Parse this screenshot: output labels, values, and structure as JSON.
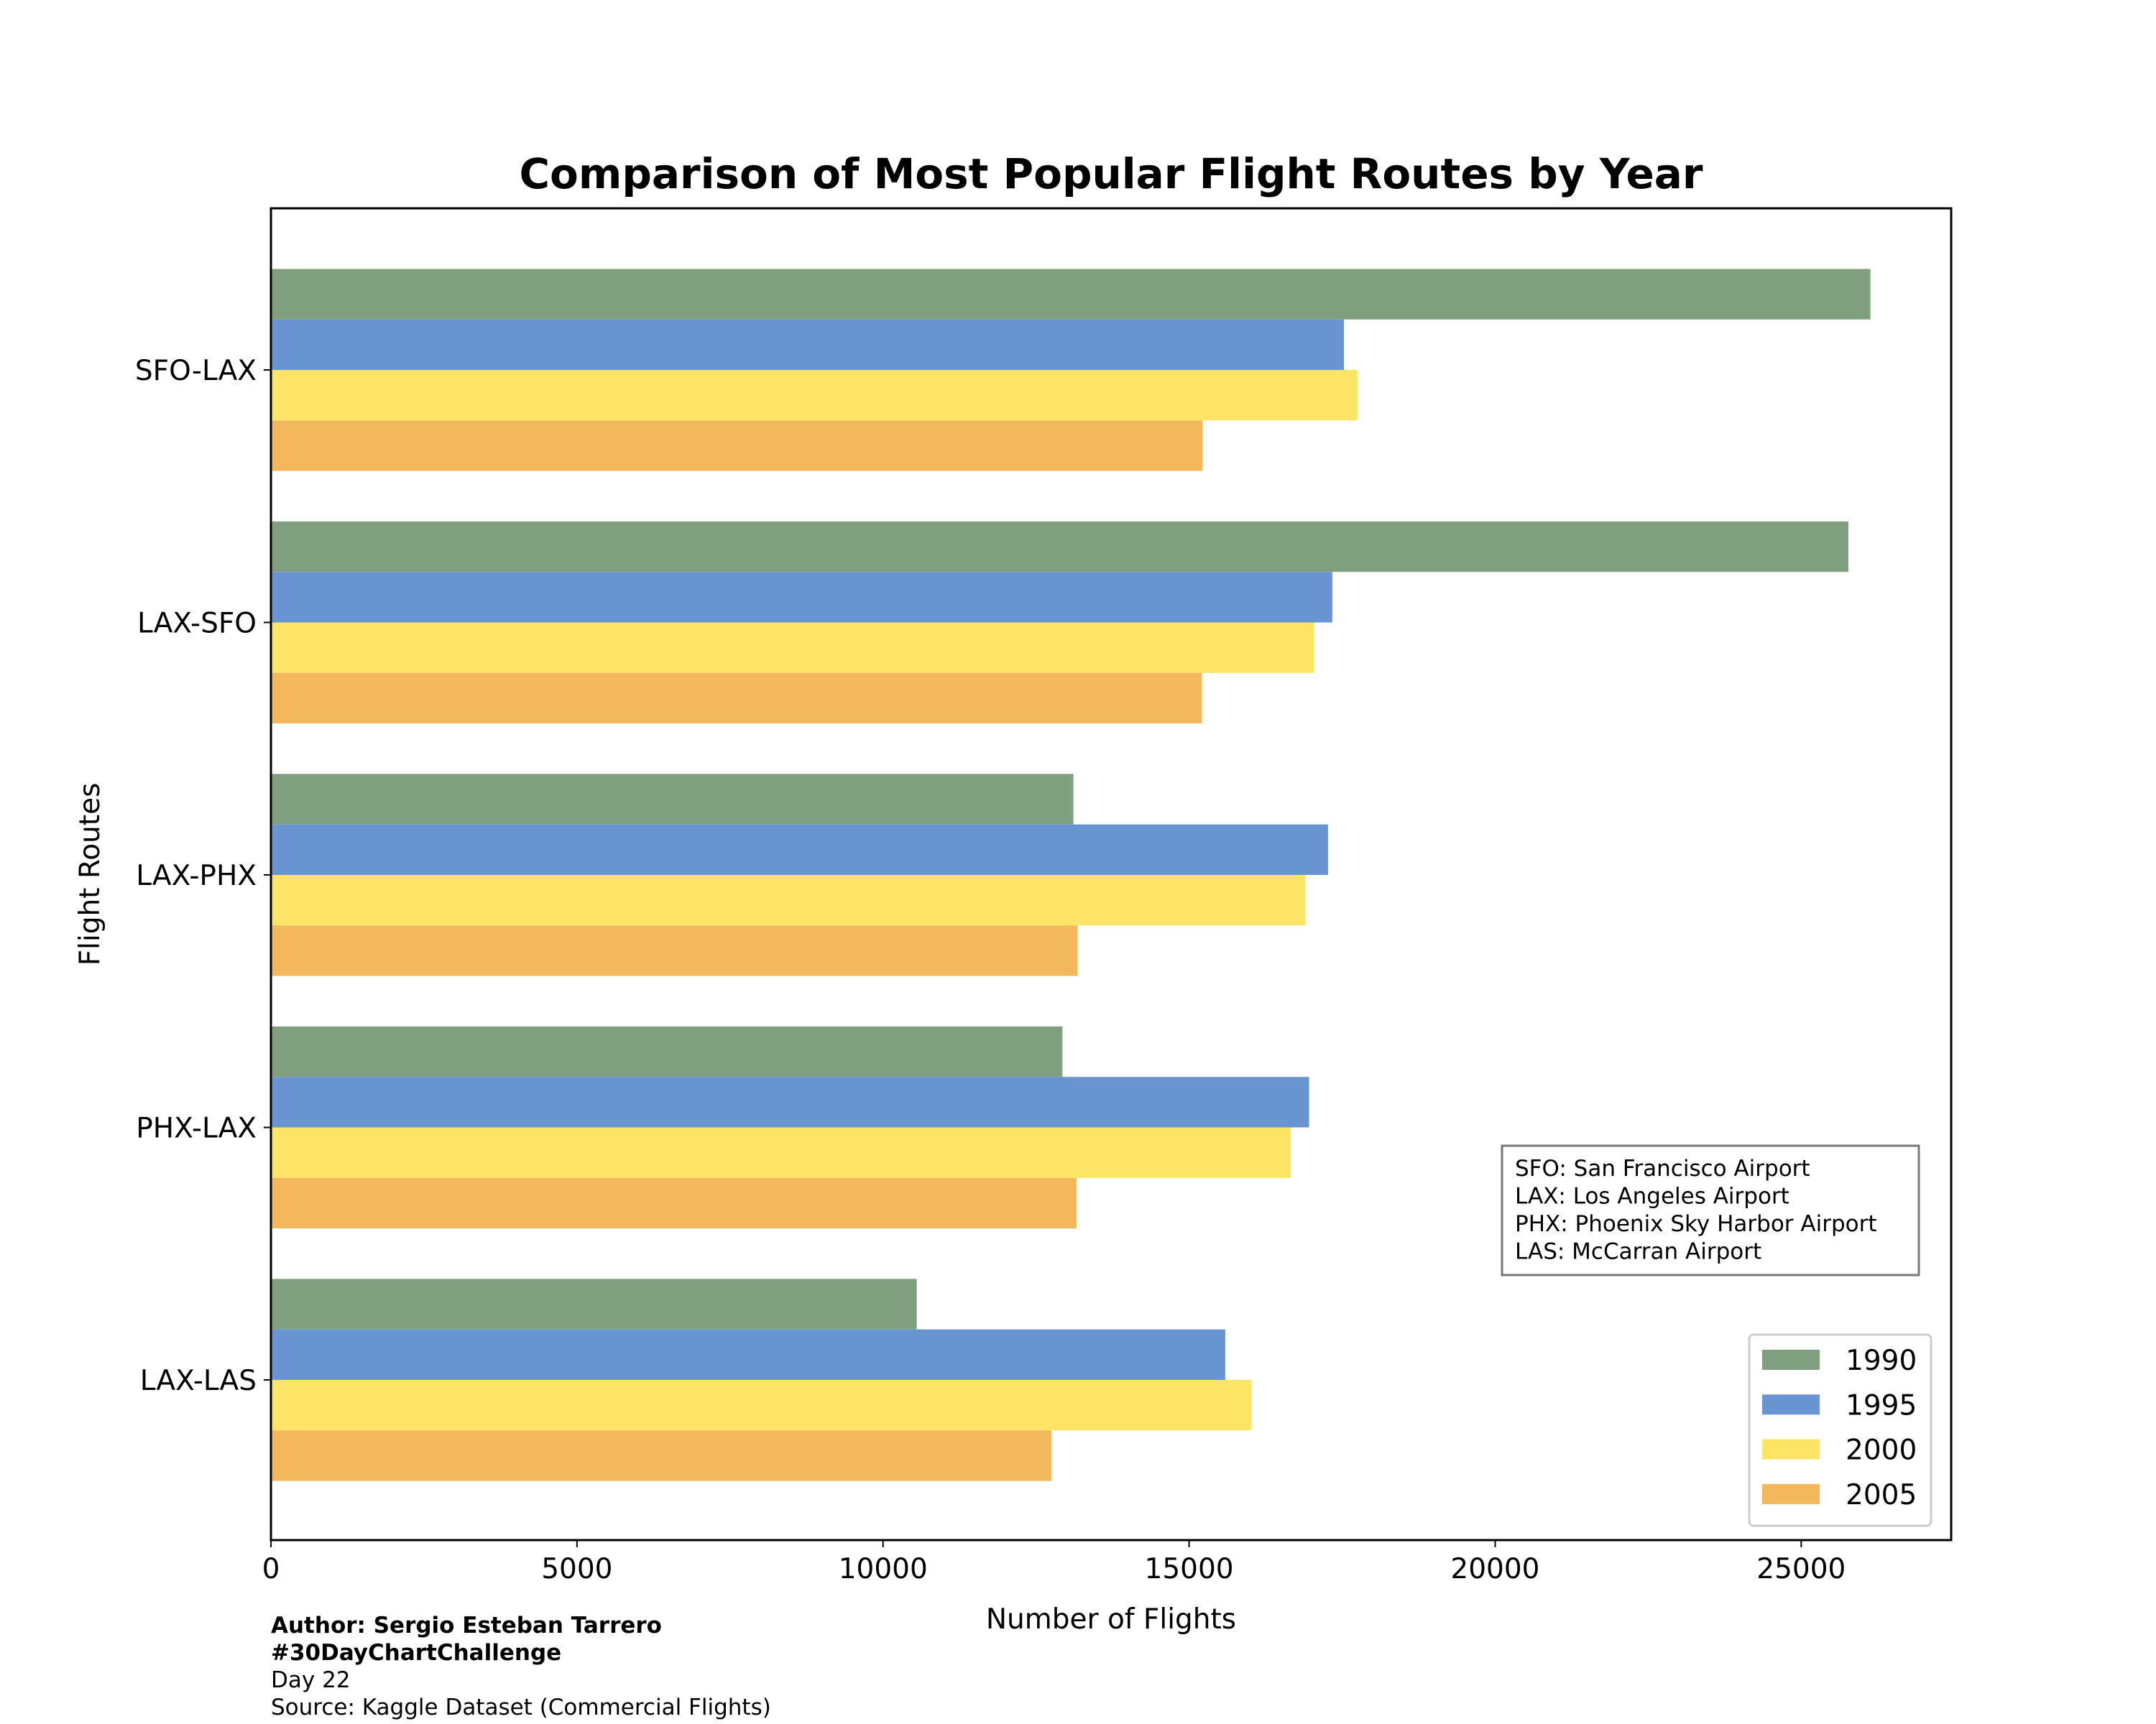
{
  "chart_data": {
    "type": "bar",
    "orientation": "horizontal",
    "title": "Comparison of Most Popular Flight Routes by Year",
    "xlabel": "Number of Flights",
    "ylabel": "Flight Routes",
    "xlim": [
      0,
      27450
    ],
    "xticks": [
      0,
      5000,
      10000,
      15000,
      20000,
      25000
    ],
    "categories": [
      "SFO-LAX",
      "LAX-SFO",
      "LAX-PHX",
      "PHX-LAX",
      "LAX-LAS"
    ],
    "series": [
      {
        "name": "1990",
        "color": "#809f7e",
        "values": [
          26130,
          25770,
          13110,
          12930,
          10550
        ]
      },
      {
        "name": "1995",
        "color": "#6894d1",
        "values": [
          17530,
          17340,
          17270,
          16960,
          15590
        ]
      },
      {
        "name": "2000",
        "color": "#fce565",
        "values": [
          17750,
          17040,
          16900,
          16660,
          16020
        ]
      },
      {
        "name": "2005",
        "color": "#f3b85c",
        "values": [
          15220,
          15210,
          13180,
          13160,
          12750
        ]
      }
    ],
    "legend_position": "lower-right",
    "grid": false,
    "annotation": [
      "SFO: San Francisco Airport",
      "LAX: Los Angeles Airport",
      "PHX: Phoenix Sky Harbor Airport",
      "LAS: McCarran Airport"
    ]
  },
  "credits": {
    "author": "Author: Sergio Esteban Tarrero",
    "hashtag": "#30DayChartChallenge",
    "day": "Day 22",
    "source": "Source: Kaggle Dataset (Commercial Flights)"
  }
}
